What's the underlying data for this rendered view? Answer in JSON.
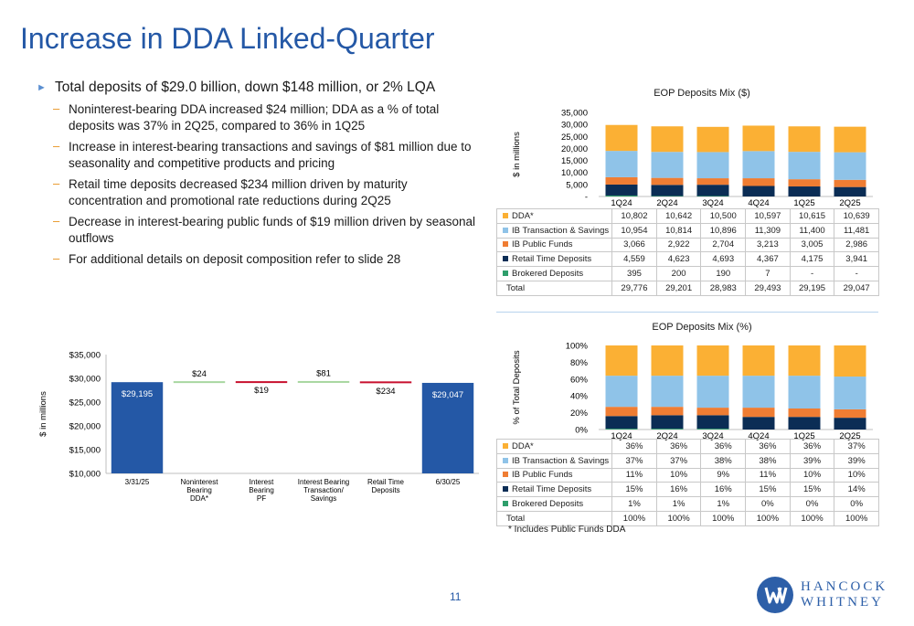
{
  "page": {
    "title": "Increase in DDA Linked-Quarter",
    "page_number": "11",
    "footnote": "* Includes Public Funds DDA"
  },
  "bullets": {
    "main": "Total deposits of $29.0 billion, down $148 million, or 2% LQA",
    "subs": [
      "Noninterest-bearing DDA increased $24 million; DDA as a % of total deposits was 37% in 2Q25, compared to 36% in 1Q25",
      "Increase in interest-bearing transactions and savings of $81 million due to seasonality and competitive products and pricing",
      "Retail time deposits decreased $234 million driven by maturity concentration and promotional rate reductions during 2Q25",
      "Decrease in interest-bearing public funds of $19 million driven by seasonal outflows",
      "For additional details on deposit composition refer to slide 28"
    ]
  },
  "logo": {
    "line1": "HANCOCK",
    "line2": "WHITNEY"
  },
  "colors": {
    "dda": "#fbb034",
    "ib_trans": "#8fc3e8",
    "ib_public": "#ef7d33",
    "retail_time": "#0b2d55",
    "brokered": "#2e9e6b",
    "bar_blue": "#2458a6",
    "up_green": "#a8d7a0",
    "down_red": "#c8102e"
  },
  "chart_data": [
    {
      "type": "bar",
      "stacked": true,
      "title": "EOP Deposits Mix ($)",
      "ylabel": "$ in millions",
      "ylim": [
        0,
        35000
      ],
      "yticks": [
        "-",
        "5,000",
        "10,000",
        "15,000",
        "20,000",
        "25,000",
        "30,000",
        "35,000"
      ],
      "categories": [
        "1Q24",
        "2Q24",
        "3Q24",
        "4Q24",
        "1Q25",
        "2Q25"
      ],
      "series": [
        {
          "name": "DDA*",
          "key": "dda",
          "values": [
            10802,
            10642,
            10500,
            10597,
            10615,
            10639
          ],
          "labels": [
            "10,802",
            "10,642",
            "10,500",
            "10,597",
            "10,615",
            "10,639"
          ]
        },
        {
          "name": "IB Transaction & Savings",
          "key": "ib_trans",
          "values": [
            10954,
            10814,
            10896,
            11309,
            11400,
            11481
          ],
          "labels": [
            "10,954",
            "10,814",
            "10,896",
            "11,309",
            "11,400",
            "11,481"
          ]
        },
        {
          "name": "IB Public Funds",
          "key": "ib_public",
          "values": [
            3066,
            2922,
            2704,
            3213,
            3005,
            2986
          ],
          "labels": [
            "3,066",
            "2,922",
            "2,704",
            "3,213",
            "3,005",
            "2,986"
          ]
        },
        {
          "name": "Retail Time Deposits",
          "key": "retail_time",
          "values": [
            4559,
            4623,
            4693,
            4367,
            4175,
            3941
          ],
          "labels": [
            "4,559",
            "4,623",
            "4,693",
            "4,367",
            "4,175",
            "3,941"
          ]
        },
        {
          "name": "Brokered Deposits",
          "key": "brokered",
          "values": [
            395,
            200,
            190,
            7,
            0,
            0
          ],
          "labels": [
            "395",
            "200",
            "190",
            "7",
            "-",
            "-"
          ]
        }
      ],
      "total": {
        "name": "Total",
        "labels": [
          "29,776",
          "29,201",
          "28,983",
          "29,493",
          "29,195",
          "29,047"
        ]
      }
    },
    {
      "type": "bar",
      "stacked": true,
      "title": "EOP Deposits Mix (%)",
      "ylabel": "% of Total Deposits",
      "ylim": [
        0,
        100
      ],
      "yticks": [
        "0%",
        "20%",
        "40%",
        "60%",
        "80%",
        "100%"
      ],
      "categories": [
        "1Q24",
        "2Q24",
        "3Q24",
        "4Q24",
        "1Q25",
        "2Q25"
      ],
      "series": [
        {
          "name": "DDA*",
          "key": "dda",
          "values": [
            36,
            36,
            36,
            36,
            36,
            37
          ],
          "labels": [
            "36%",
            "36%",
            "36%",
            "36%",
            "36%",
            "37%"
          ]
        },
        {
          "name": "IB Transaction & Savings",
          "key": "ib_trans",
          "values": [
            37,
            37,
            38,
            38,
            39,
            39
          ],
          "labels": [
            "37%",
            "37%",
            "38%",
            "38%",
            "39%",
            "39%"
          ]
        },
        {
          "name": "IB Public Funds",
          "key": "ib_public",
          "values": [
            11,
            10,
            9,
            11,
            10,
            10
          ],
          "labels": [
            "11%",
            "10%",
            "9%",
            "11%",
            "10%",
            "10%"
          ]
        },
        {
          "name": "Retail Time Deposits",
          "key": "retail_time",
          "values": [
            15,
            16,
            16,
            15,
            15,
            14
          ],
          "labels": [
            "15%",
            "16%",
            "16%",
            "15%",
            "15%",
            "14%"
          ]
        },
        {
          "name": "Brokered Deposits",
          "key": "brokered",
          "values": [
            1,
            1,
            1,
            0,
            0,
            0
          ],
          "labels": [
            "1%",
            "1%",
            "1%",
            "0%",
            "0%",
            "0%"
          ]
        }
      ],
      "total": {
        "name": "Total",
        "labels": [
          "100%",
          "100%",
          "100%",
          "100%",
          "100%",
          "100%"
        ]
      }
    },
    {
      "type": "waterfall",
      "ylabel": "$ in millions",
      "ylim": [
        10000,
        35000
      ],
      "yticks": [
        "$10,000",
        "$15,000",
        "$20,000",
        "$25,000",
        "$30,000",
        "$35,000"
      ],
      "categories": [
        "3/31/25",
        "Noninterest Bearing DDA*",
        "Interest Bearing PF",
        "Interest Bearing Transaction/ Savings",
        "Retail Time Deposits",
        "6/30/25"
      ],
      "category_lines": [
        [
          "3/31/25"
        ],
        [
          "Noninterest",
          "Bearing",
          "DDA*"
        ],
        [
          "Interest",
          "Bearing",
          "PF"
        ],
        [
          "Interest Bearing",
          "Transaction/",
          "Savings"
        ],
        [
          "Retail Time",
          "Deposits"
        ],
        [
          "6/30/25"
        ]
      ],
      "steps": [
        {
          "kind": "total",
          "value": 29195,
          "label": "$29,195"
        },
        {
          "kind": "increase",
          "value": 24,
          "label": "$24"
        },
        {
          "kind": "decrease",
          "value": -19,
          "label": "$19"
        },
        {
          "kind": "increase",
          "value": 81,
          "label": "$81"
        },
        {
          "kind": "decrease",
          "value": -234,
          "label": "$234"
        },
        {
          "kind": "total",
          "value": 29047,
          "label": "$29,047"
        }
      ]
    }
  ]
}
